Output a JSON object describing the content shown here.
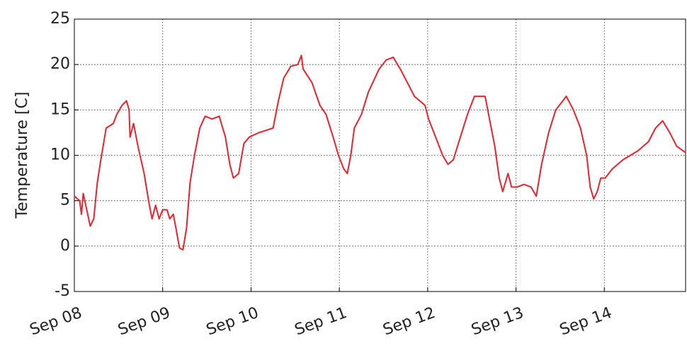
{
  "chart_data": {
    "type": "line",
    "y_label": "Temperature  [C]",
    "color": "#e8232d",
    "grid": true,
    "xlim": [
      0,
      6.92
    ],
    "ylim": [
      -5,
      25
    ],
    "xticks": [
      {
        "value": 0,
        "label": "Sep 08"
      },
      {
        "value": 1,
        "label": "Sep 09"
      },
      {
        "value": 2,
        "label": "Sep 10"
      },
      {
        "value": 3,
        "label": "Sep 11"
      },
      {
        "value": 4,
        "label": "Sep 12"
      },
      {
        "value": 5,
        "label": "Sep 13"
      },
      {
        "value": 6,
        "label": "Sep 14"
      }
    ],
    "yticks": [
      -5,
      0,
      5,
      10,
      15,
      20,
      25
    ],
    "x": [
      0,
      0.06,
      0.08,
      0.1,
      0.14,
      0.18,
      0.22,
      0.26,
      0.3,
      0.36,
      0.44,
      0.48,
      0.54,
      0.59,
      0.62,
      0.63,
      0.67,
      0.72,
      0.79,
      0.84,
      0.88,
      0.92,
      0.96,
      1.0,
      1.05,
      1.08,
      1.12,
      1.15,
      1.19,
      1.23,
      1.27,
      1.31,
      1.36,
      1.42,
      1.48,
      1.56,
      1.64,
      1.71,
      1.76,
      1.8,
      1.86,
      1.92,
      1.98,
      2.09,
      2.25,
      2.31,
      2.37,
      2.45,
      2.53,
      2.57,
      2.59,
      2.69,
      2.78,
      2.85,
      2.93,
      2.99,
      3.05,
      3.09,
      3.13,
      3.17,
      3.25,
      3.33,
      3.45,
      3.53,
      3.61,
      3.69,
      3.77,
      3.85,
      3.97,
      4.01,
      4.09,
      4.17,
      4.23,
      4.29,
      4.37,
      4.45,
      4.53,
      4.65,
      4.69,
      4.76,
      4.81,
      4.85,
      4.91,
      4.95,
      5.01,
      5.09,
      5.17,
      5.23,
      5.29,
      5.37,
      5.45,
      5.53,
      5.57,
      5.65,
      5.73,
      5.8,
      5.84,
      5.88,
      5.92,
      5.96,
      6.01,
      6.09,
      6.21,
      6.38,
      6.5,
      6.58,
      6.66,
      6.74,
      6.82,
      6.92
    ],
    "values": [
      5.5,
      5,
      3.5,
      5.8,
      4,
      2.2,
      3,
      7,
      9.5,
      13,
      13.5,
      14.5,
      15.5,
      16,
      15,
      12,
      13.5,
      11,
      8,
      5,
      3,
      4.5,
      3,
      4,
      4,
      3,
      3.5,
      2,
      -0.2,
      -0.4,
      2,
      7,
      10,
      13,
      14.3,
      14,
      14.3,
      12,
      9,
      7.5,
      8,
      11.3,
      12,
      12.5,
      13,
      16,
      18.5,
      19.8,
      20,
      21,
      19.5,
      18,
      15.5,
      14.5,
      12,
      10,
      8.5,
      8,
      10,
      13,
      14.5,
      17,
      19.5,
      20.5,
      20.8,
      19.5,
      18,
      16.5,
      15.5,
      14,
      12,
      10,
      9,
      9.5,
      12,
      14.5,
      16.5,
      16.5,
      14.5,
      11,
      7.5,
      6,
      8,
      6.5,
      6.5,
      6.8,
      6.5,
      5.5,
      9,
      12.5,
      15,
      16,
      16.5,
      15,
      13,
      10,
      6.5,
      5.2,
      6,
      7.5,
      7.5,
      8.5,
      9.5,
      10.5,
      11.5,
      13,
      13.8,
      12.5,
      11,
      10.3
    ]
  }
}
